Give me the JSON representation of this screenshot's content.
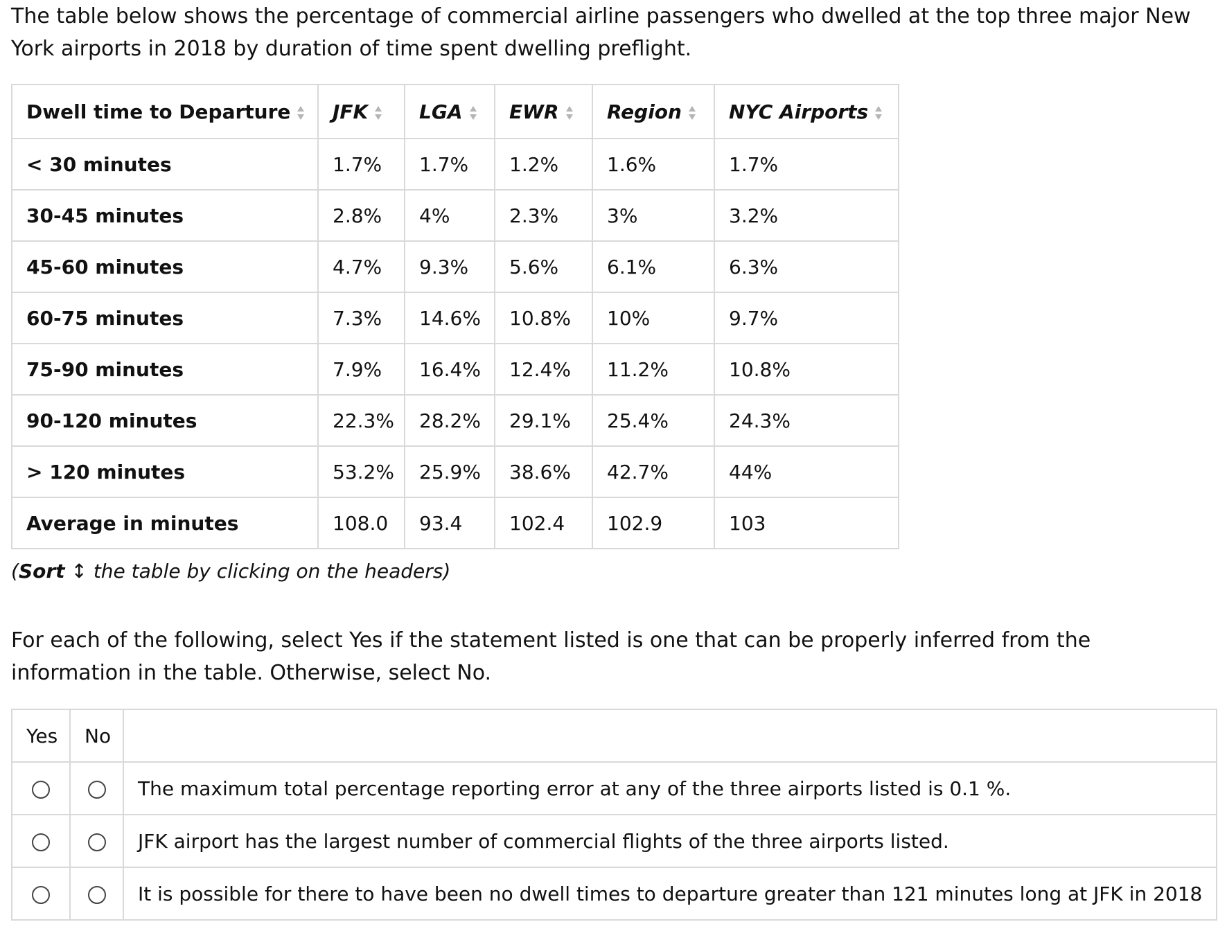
{
  "intro": "The table below shows the percentage of commercial airline passengers who dwelled at the top three major New York airports in 2018 by duration of time spent dwelling preflight.",
  "table": {
    "headers": [
      "Dwell time to Departure",
      "JFK",
      "LGA",
      "EWR",
      "Region",
      "NYC Airports"
    ],
    "rows": [
      {
        "label": "< 30 minutes",
        "jfk": "1.7%",
        "lga": "1.7%",
        "ewr": "1.2%",
        "region": "1.6%",
        "nyc": "1.7%"
      },
      {
        "label": "30-45 minutes",
        "jfk": "2.8%",
        "lga": "4%",
        "ewr": "2.3%",
        "region": "3%",
        "nyc": "3.2%"
      },
      {
        "label": "45-60 minutes",
        "jfk": "4.7%",
        "lga": "9.3%",
        "ewr": "5.6%",
        "region": "6.1%",
        "nyc": "6.3%"
      },
      {
        "label": "60-75 minutes",
        "jfk": "7.3%",
        "lga": "14.6%",
        "ewr": "10.8%",
        "region": "10%",
        "nyc": "9.7%"
      },
      {
        "label": "75-90 minutes",
        "jfk": "7.9%",
        "lga": "16.4%",
        "ewr": "12.4%",
        "region": "11.2%",
        "nyc": "10.8%"
      },
      {
        "label": "90-120 minutes",
        "jfk": "22.3%",
        "lga": "28.2%",
        "ewr": "29.1%",
        "region": "25.4%",
        "nyc": "24.3%"
      },
      {
        "label": "> 120 minutes",
        "jfk": "53.2%",
        "lga": "25.9%",
        "ewr": "38.6%",
        "region": "42.7%",
        "nyc": "44%"
      },
      {
        "label": "Average in minutes",
        "jfk": "108.0",
        "lga": "93.4",
        "ewr": "102.4",
        "region": "102.9",
        "nyc": "103"
      }
    ]
  },
  "sort_note": {
    "bold": "Sort",
    "glyph": "↕",
    "rest": " the table by clicking on the headers)",
    "open": "("
  },
  "instructions": "For each of the following, select Yes if the statement listed is one that can be properly inferred from the information in the table. Otherwise, select No.",
  "questions": {
    "yes_label": "Yes",
    "no_label": "No",
    "statements": [
      "The maximum total percentage reporting error at any of the three airports listed is 0.1 %.",
      "JFK airport has the largest number of commercial flights of the three airports listed.",
      "It is possible for there to have been no dwell times to departure greater than 121 minutes long at JFK in 2018"
    ]
  }
}
